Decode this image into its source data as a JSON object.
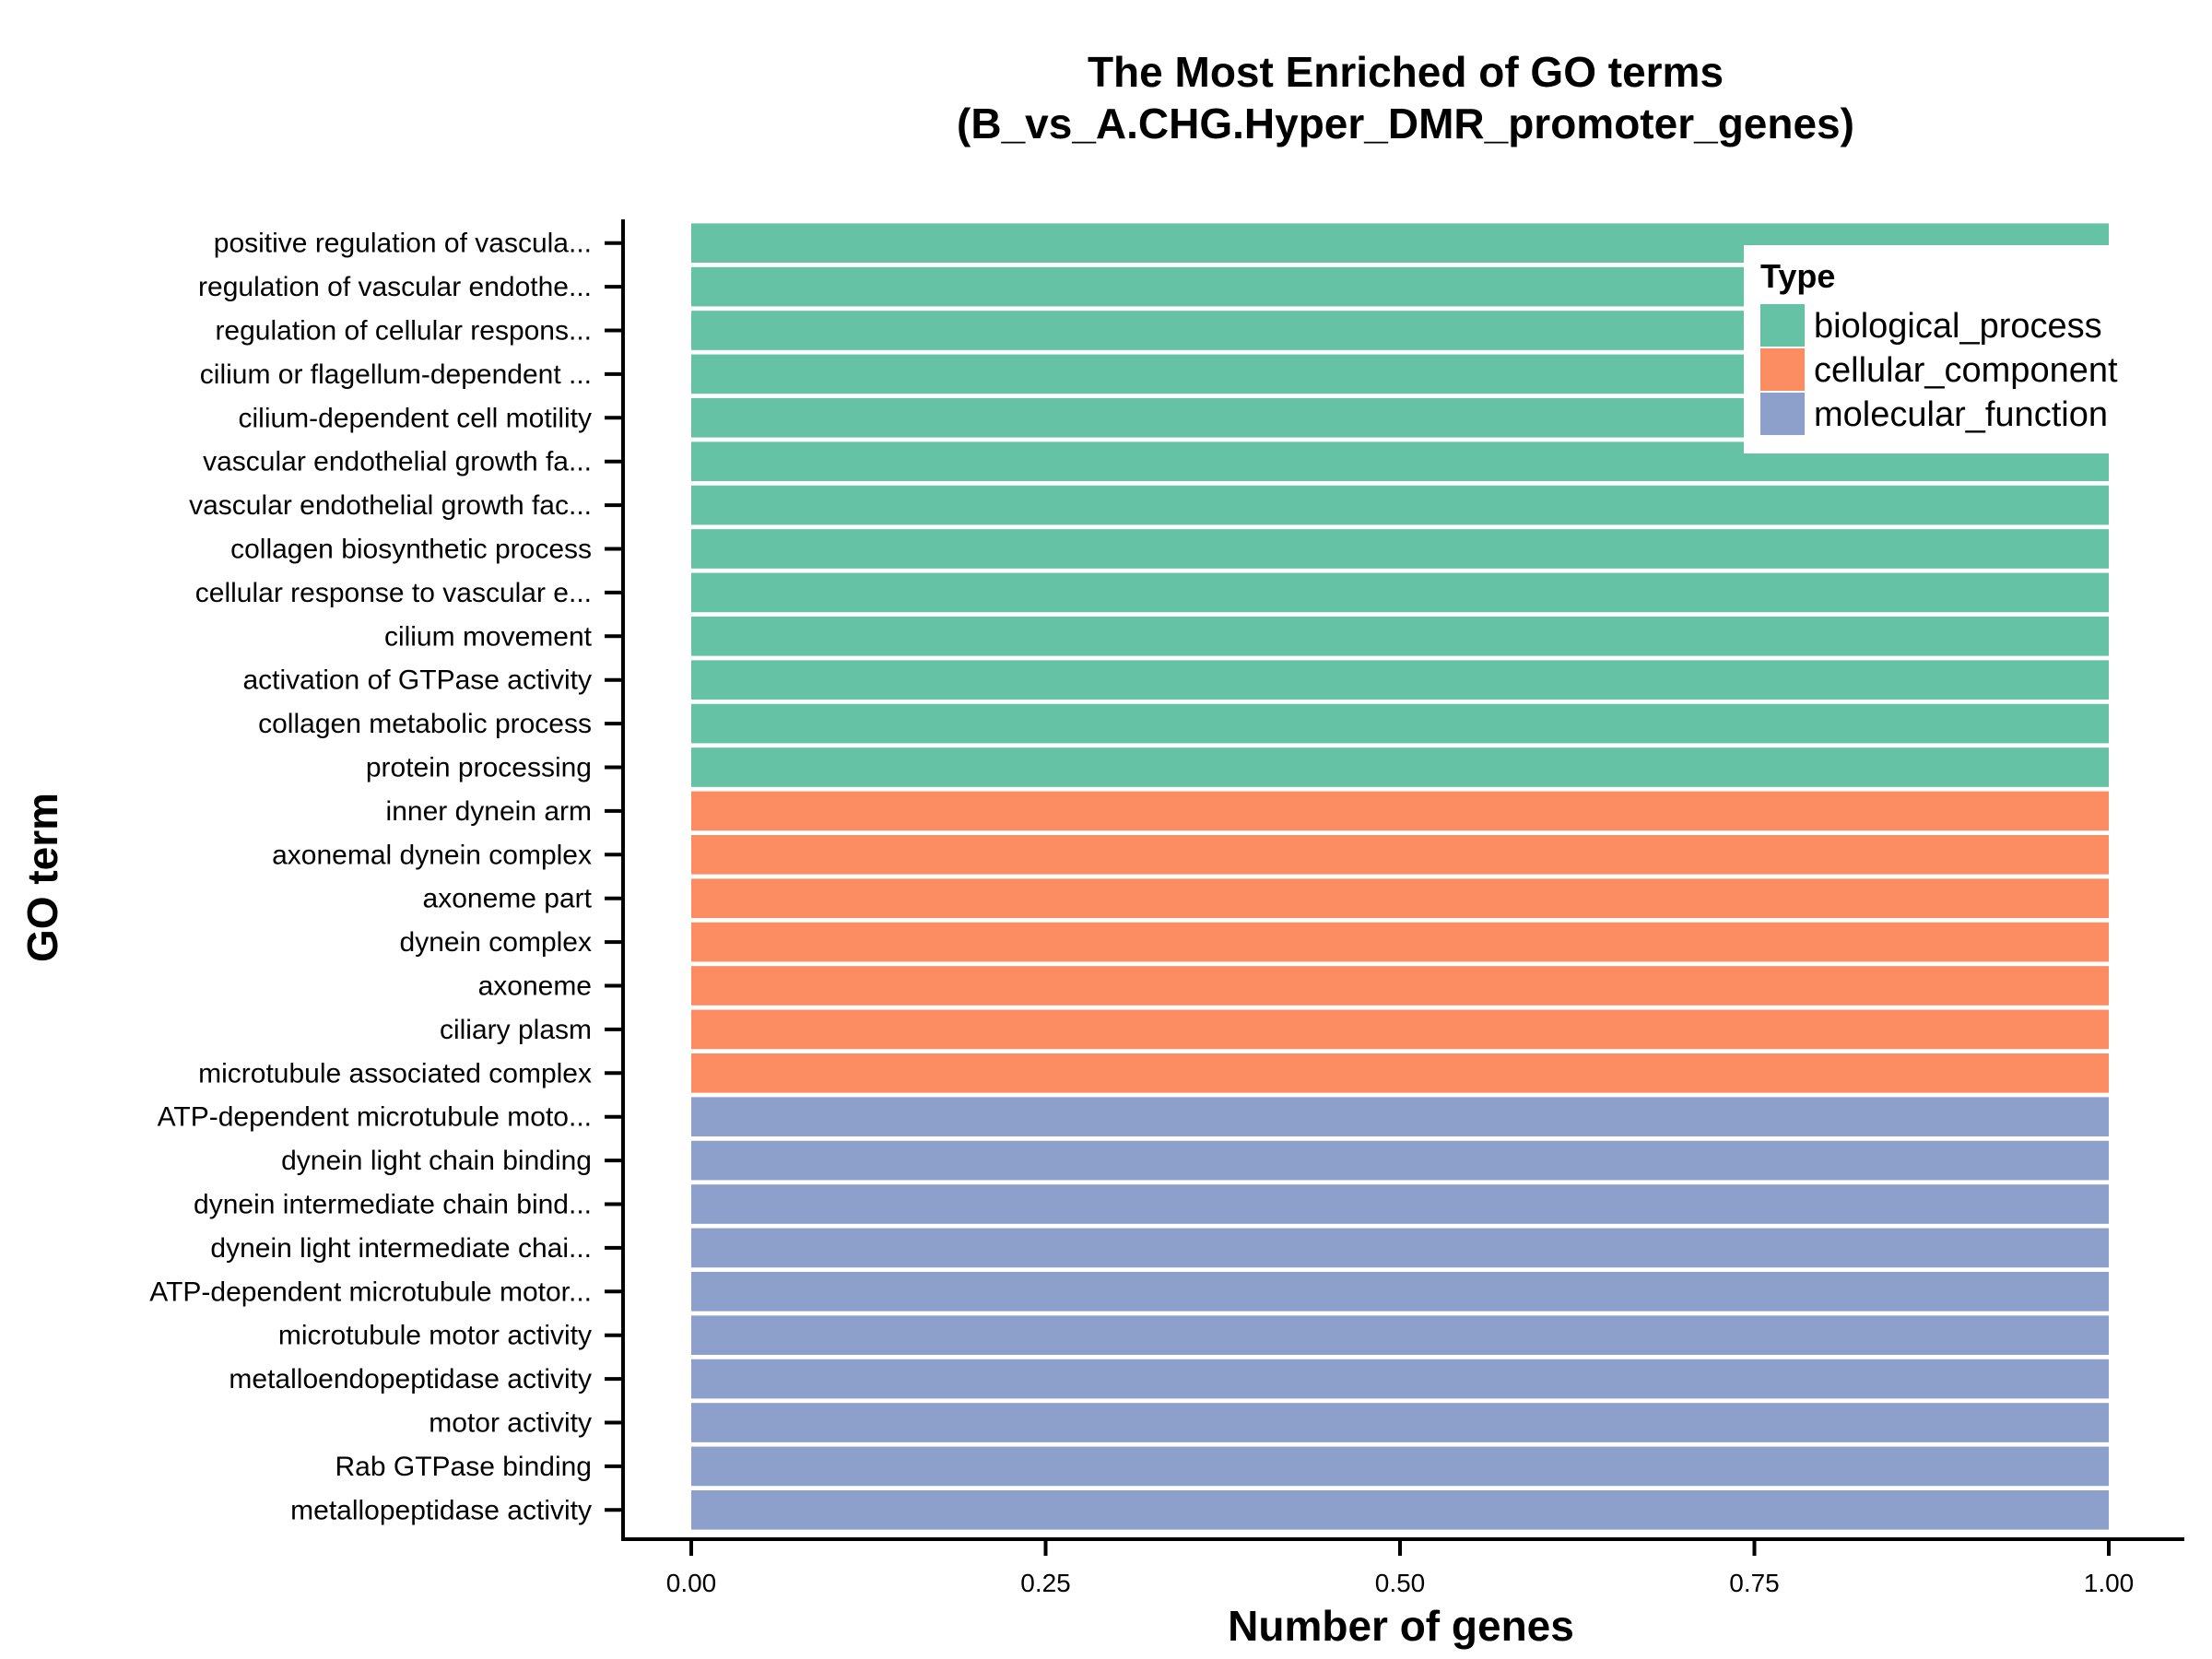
{
  "chart_data": {
    "type": "bar",
    "orientation": "horizontal",
    "title": [
      "The Most Enriched of GO terms",
      "(B_vs_A.CHG.Hyper_DMR_promoter_genes)"
    ],
    "xlabel": "Number of genes",
    "ylabel": "GO term",
    "xlim": [
      0,
      1
    ],
    "xticks": [
      "0.00",
      "0.25",
      "0.50",
      "0.75",
      "1.00"
    ],
    "grid": false,
    "legend": {
      "title": "Type",
      "position": "top-right",
      "entries": [
        {
          "name": "biological_process",
          "color": "#66c2a5"
        },
        {
          "name": "cellular_component",
          "color": "#fc8d62"
        },
        {
          "name": "molecular_function",
          "color": "#8da0cb"
        }
      ]
    },
    "categories": [
      "positive regulation of vascula...",
      "regulation of vascular endothe...",
      "regulation of cellular respons...",
      "cilium or flagellum-dependent ...",
      "cilium-dependent cell motility",
      "vascular endothelial growth fa...",
      "vascular endothelial growth fac...",
      "collagen biosynthetic process",
      "cellular response to vascular e...",
      "cilium movement",
      "activation of GTPase activity",
      "collagen metabolic process",
      "protein processing",
      "inner dynein arm",
      "axonemal dynein complex",
      "axoneme part",
      "dynein complex",
      "axoneme",
      "ciliary plasm",
      "microtubule associated complex",
      "ATP-dependent microtubule moto...",
      "dynein light chain binding",
      "dynein intermediate chain bind...",
      "dynein light intermediate chai...",
      "ATP-dependent microtubule motor...",
      "microtubule motor activity",
      "metalloendopeptidase activity",
      "motor activity",
      "Rab GTPase binding",
      "metallopeptidase activity"
    ],
    "values": [
      1,
      1,
      1,
      1,
      1,
      1,
      1,
      1,
      1,
      1,
      1,
      1,
      1,
      1,
      1,
      1,
      1,
      1,
      1,
      1,
      1,
      1,
      1,
      1,
      1,
      1,
      1,
      1,
      1,
      1
    ],
    "types": [
      "biological_process",
      "biological_process",
      "biological_process",
      "biological_process",
      "biological_process",
      "biological_process",
      "biological_process",
      "biological_process",
      "biological_process",
      "biological_process",
      "biological_process",
      "biological_process",
      "biological_process",
      "cellular_component",
      "cellular_component",
      "cellular_component",
      "cellular_component",
      "cellular_component",
      "cellular_component",
      "cellular_component",
      "molecular_function",
      "molecular_function",
      "molecular_function",
      "molecular_function",
      "molecular_function",
      "molecular_function",
      "molecular_function",
      "molecular_function",
      "molecular_function",
      "molecular_function"
    ]
  }
}
